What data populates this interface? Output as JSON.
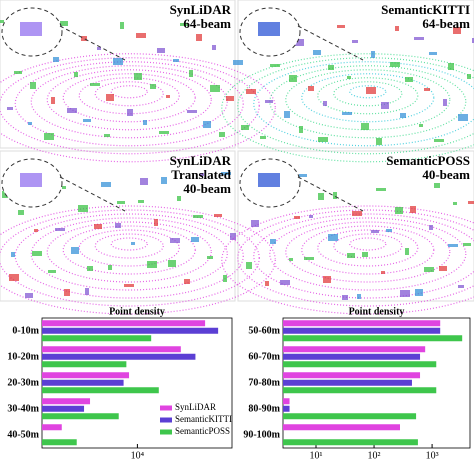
{
  "panels": [
    {
      "lines": [
        "SynLiDAR",
        "64-beam"
      ]
    },
    {
      "lines": [
        "SemanticKITTI",
        "64-beam"
      ]
    },
    {
      "lines": [
        "SynLiDAR",
        "Translated",
        "40-beam"
      ]
    },
    {
      "lines": [
        "SemanticPOSS",
        "40-beam"
      ]
    }
  ],
  "chart_data": [
    {
      "type": "barh",
      "title": "Point density",
      "log": true,
      "categories": [
        "0-10m",
        "10-20m",
        "20-30m",
        "30-40m",
        "40-50m"
      ],
      "series": [
        {
          "name": "SynLiDAR",
          "color": "#e044e0",
          "values": [
            23500,
            17300,
            9000,
            5500,
            3850
          ]
        },
        {
          "name": "SemanticKITTI",
          "color": "#5b3fd4",
          "values": [
            27700,
            20800,
            8400,
            5100,
            null
          ]
        },
        {
          "name": "SemanticPOSS",
          "color": "#3ec64c",
          "values": [
            11900,
            8700,
            13100,
            7900,
            4650
          ]
        }
      ],
      "xlim": [
        3000,
        33000
      ],
      "xticks": [
        {
          "value": 10000,
          "label": "10⁴"
        }
      ],
      "legend": "lower right"
    },
    {
      "type": "barh",
      "title": "Point density",
      "log": true,
      "categories": [
        "50-60m",
        "60-70m",
        "70-80m",
        "80-90m",
        "90-100m"
      ],
      "series": [
        {
          "name": "SynLiDAR",
          "color": "#e044e0",
          "values": [
            1380,
            760,
            620,
            3.5,
            280
          ]
        },
        {
          "name": "SemanticKITTI",
          "color": "#5b3fd4",
          "values": [
            1380,
            620,
            450,
            3.5,
            null
          ]
        },
        {
          "name": "SemanticPOSS",
          "color": "#3ec64c",
          "values": [
            3300,
            1180,
            1180,
            530,
            570
          ]
        }
      ],
      "xlim": [
        2.7,
        4500
      ],
      "xticks": [
        {
          "value": 10,
          "label": "10¹"
        },
        {
          "value": 100,
          "label": "10²"
        },
        {
          "value": 1000,
          "label": "10³"
        }
      ]
    }
  ]
}
